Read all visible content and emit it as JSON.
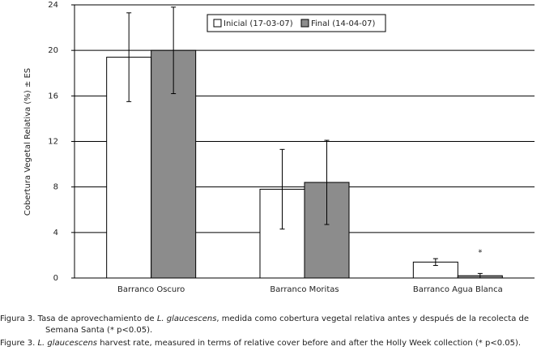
{
  "chart_data": {
    "type": "bar",
    "y_label": "Cobertura Vegetal Relativa (%) ± ES",
    "categories": [
      "Barranco Oscuro",
      "Barranco Moritas",
      "Barranco Agua Blanca"
    ],
    "series": [
      {
        "name": "Inicial (17-03-07)",
        "color": "#ffffff",
        "values": [
          19.4,
          7.8,
          1.4
        ],
        "errors": [
          3.9,
          3.5,
          0.3
        ]
      },
      {
        "name": "Final (14-04-07)",
        "color": "#8c8c8c",
        "values": [
          20.0,
          8.4,
          0.2
        ],
        "errors": [
          3.8,
          3.7,
          0.2
        ]
      }
    ],
    "significance_label": "*",
    "ylim": [
      0,
      24
    ],
    "yticks": [
      0,
      4,
      8,
      12,
      16,
      20,
      24
    ],
    "grid": true,
    "legend": "top"
  },
  "caption": {
    "es": [
      "Figura 3. Tasa de aprovechamiento de ",
      "L. glaucescens",
      ", medida como cobertura vegetal relativa antes y después de la recolecta de",
      "Semana Santa (* p<0.05)."
    ],
    "en": [
      "Figure 3. ",
      "L. glaucescens",
      " harvest rate, measured in terms of relative cover before and after the Holly Week collection (* p<0.05)."
    ]
  }
}
